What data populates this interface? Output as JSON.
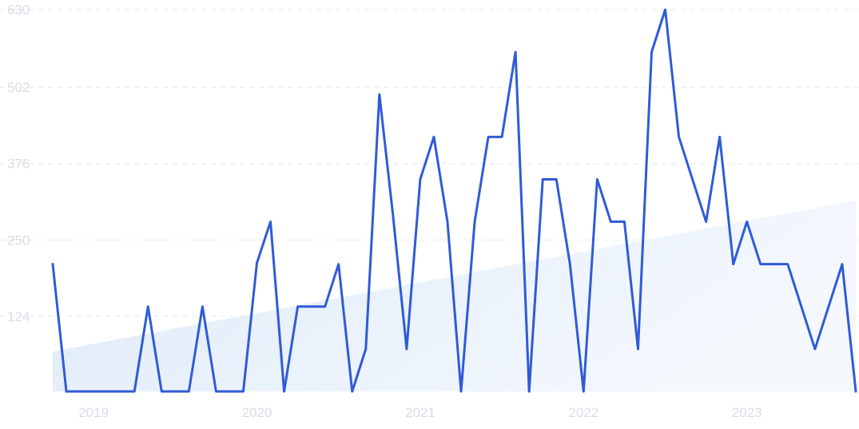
{
  "chart_data": {
    "type": "line",
    "title": "",
    "xlabel": "",
    "ylabel": "",
    "x_ticks": [
      "2019",
      "2020",
      "2021",
      "2022",
      "2023"
    ],
    "y_ticks": [
      "630",
      "502",
      "376",
      "250",
      "124"
    ],
    "ylim": [
      0,
      630
    ],
    "xlim": [
      "2018-10",
      "2023-09"
    ],
    "grid": true,
    "legend": "none",
    "x": [
      "2018-10",
      "2018-11",
      "2018-12",
      "2019-01",
      "2019-02",
      "2019-03",
      "2019-04",
      "2019-05",
      "2019-06",
      "2019-07",
      "2019-08",
      "2019-09",
      "2019-10",
      "2019-11",
      "2019-12",
      "2020-01",
      "2020-02",
      "2020-03",
      "2020-04",
      "2020-05",
      "2020-06",
      "2020-07",
      "2020-08",
      "2020-09",
      "2020-10",
      "2020-11",
      "2020-12",
      "2021-01",
      "2021-02",
      "2021-03",
      "2021-04",
      "2021-05",
      "2021-06",
      "2021-07",
      "2021-08",
      "2021-09",
      "2021-10",
      "2021-11",
      "2021-12",
      "2022-01",
      "2022-02",
      "2022-03",
      "2022-04",
      "2022-05",
      "2022-06",
      "2022-07",
      "2022-08",
      "2022-09",
      "2022-10",
      "2022-11",
      "2022-12",
      "2023-01",
      "2023-02",
      "2023-03",
      "2023-04",
      "2023-05",
      "2023-06",
      "2023-07",
      "2023-08",
      "2023-09"
    ],
    "series": [
      {
        "color": "#2f5bd8",
        "values": [
          210,
          0,
          0,
          0,
          0,
          0,
          0,
          140,
          0,
          0,
          0,
          140,
          0,
          0,
          0,
          212,
          280,
          0,
          140,
          140,
          140,
          210,
          0,
          70,
          490,
          290,
          70,
          350,
          420,
          280,
          0,
          280,
          420,
          420,
          560,
          0,
          350,
          350,
          210,
          0,
          350,
          280,
          280,
          70,
          560,
          630,
          420,
          350,
          280,
          420,
          210,
          280,
          210,
          210,
          210,
          140,
          70,
          140,
          210,
          0
        ]
      }
    ],
    "trend": {
      "color": "#dce9f8",
      "start_value": 66,
      "end_value": 315
    }
  }
}
